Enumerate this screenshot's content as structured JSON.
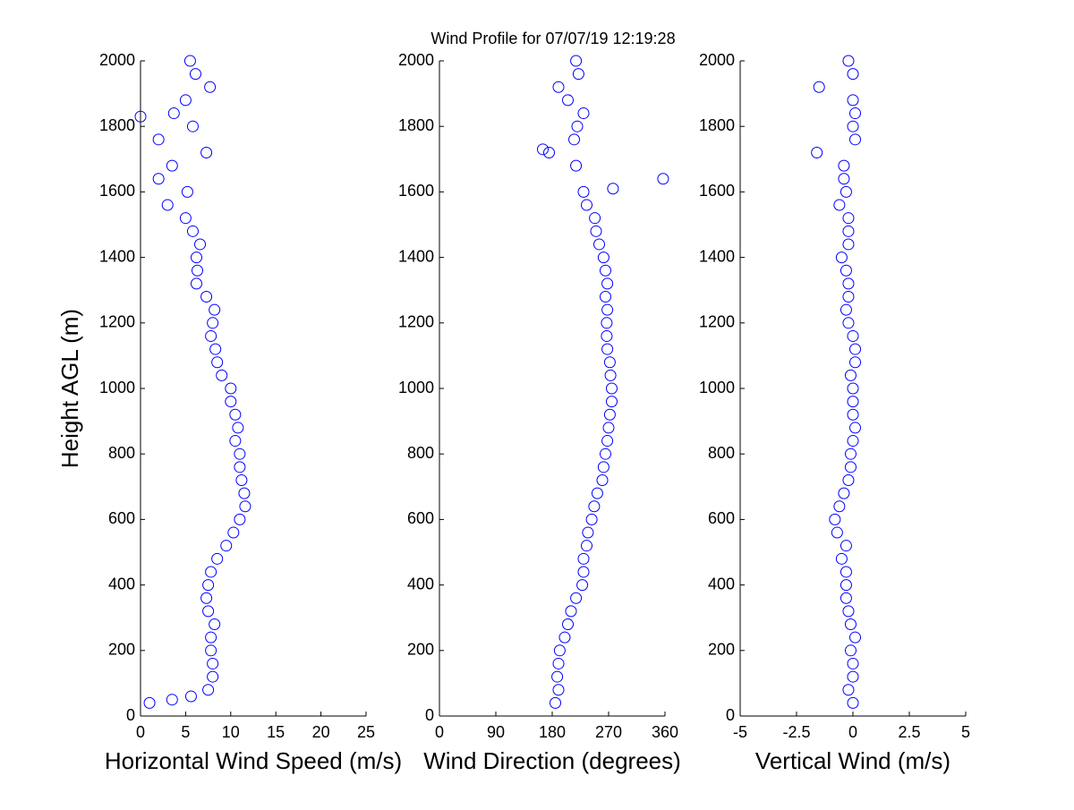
{
  "title": "Wind Profile for  07/07/19 12:19:28",
  "chart_data": [
    {
      "type": "scatter",
      "xlabel": "Horizontal Wind Speed (m/s)",
      "ylabel": "Height AGL (m)",
      "color": "#0000ff",
      "xlim": [
        0,
        25
      ],
      "xticks": [
        0,
        5,
        10,
        15,
        20,
        25
      ],
      "ylim": [
        0,
        2000
      ],
      "yticks": [
        0,
        200,
        400,
        600,
        800,
        1000,
        1200,
        1400,
        1600,
        1800,
        2000
      ],
      "x": [
        1.0,
        3.5,
        5.6,
        7.5,
        8,
        8,
        7.8,
        7.8,
        8.2,
        7.5,
        7.3,
        7.5,
        7.8,
        8.5,
        9.5,
        10.3,
        11,
        11.6,
        11.5,
        11.2,
        11,
        11,
        10.5,
        10.8,
        10.5,
        10,
        10,
        9,
        8.5,
        8.3,
        7.8,
        8,
        8.2,
        7.3,
        6.2,
        6.3,
        6.2,
        6.6,
        5.8,
        5,
        3,
        5.2,
        2,
        3.5,
        7.3,
        2,
        5.8,
        0,
        3.7,
        5,
        7.7,
        6.1,
        5.5
      ],
      "y": [
        40,
        50,
        60,
        80,
        120,
        160,
        200,
        240,
        280,
        320,
        360,
        400,
        440,
        480,
        520,
        560,
        600,
        640,
        680,
        720,
        760,
        800,
        840,
        880,
        920,
        960,
        1000,
        1040,
        1080,
        1120,
        1160,
        1200,
        1240,
        1280,
        1320,
        1360,
        1400,
        1440,
        1480,
        1520,
        1560,
        1600,
        1640,
        1680,
        1720,
        1760,
        1800,
        1830,
        1840,
        1880,
        1920,
        1960,
        2000
      ]
    },
    {
      "type": "scatter",
      "xlabel": "Wind Direction (degrees)",
      "color": "#0000ff",
      "xlim": [
        0,
        360
      ],
      "xticks": [
        0,
        90,
        180,
        270,
        360
      ],
      "ylim": [
        0,
        2000
      ],
      "yticks": [
        0,
        200,
        400,
        600,
        800,
        1000,
        1200,
        1400,
        1600,
        1800,
        2000
      ],
      "x": [
        185,
        190,
        188,
        190,
        192,
        200,
        205,
        210,
        218,
        228,
        230,
        230,
        235,
        237,
        243,
        247,
        252,
        260,
        262,
        265,
        268,
        270,
        272,
        275,
        275,
        273,
        272,
        268,
        267,
        267,
        268,
        265,
        268,
        265,
        262,
        255,
        250,
        248,
        235,
        230,
        277,
        357,
        218,
        175,
        165,
        215,
        220,
        230,
        205,
        190,
        222,
        218
      ],
      "y": [
        40,
        80,
        120,
        160,
        200,
        240,
        280,
        320,
        360,
        400,
        440,
        480,
        520,
        560,
        600,
        640,
        680,
        720,
        760,
        800,
        840,
        880,
        920,
        960,
        1000,
        1040,
        1080,
        1120,
        1160,
        1200,
        1240,
        1280,
        1320,
        1360,
        1400,
        1440,
        1480,
        1520,
        1560,
        1600,
        1610,
        1640,
        1680,
        1720,
        1730,
        1760,
        1800,
        1840,
        1880,
        1920,
        1960,
        2000
      ]
    },
    {
      "type": "scatter",
      "xlabel": "Vertical Wind (m/s)",
      "color": "#0000ff",
      "xlim": [
        -5,
        5
      ],
      "xticks": [
        -5,
        -2.5,
        0,
        2.5,
        5
      ],
      "ylim": [
        0,
        2000
      ],
      "yticks": [
        0,
        200,
        400,
        600,
        800,
        1000,
        1200,
        1400,
        1600,
        1800,
        2000
      ],
      "x": [
        0,
        -0.2,
        0,
        0,
        -0.1,
        0.1,
        -0.1,
        -0.2,
        -0.3,
        -0.3,
        -0.3,
        -0.5,
        -0.3,
        -0.7,
        -0.8,
        -0.6,
        -0.4,
        -0.2,
        -0.1,
        -0.1,
        0,
        0.1,
        0,
        0,
        0,
        -0.1,
        0.1,
        0.1,
        0,
        -0.2,
        -0.3,
        -0.2,
        -0.2,
        -0.3,
        -0.5,
        -0.2,
        -0.2,
        -0.2,
        -0.6,
        -0.3,
        -0.4,
        -0.4,
        -1.6,
        0.1,
        0,
        0.1,
        0,
        -1.5,
        0,
        -0.2
      ],
      "y": [
        40,
        80,
        120,
        160,
        200,
        240,
        280,
        320,
        360,
        400,
        440,
        480,
        520,
        560,
        600,
        640,
        680,
        720,
        760,
        800,
        840,
        880,
        920,
        960,
        1000,
        1040,
        1080,
        1120,
        1160,
        1200,
        1240,
        1280,
        1320,
        1360,
        1400,
        1440,
        1480,
        1520,
        1560,
        1600,
        1640,
        1680,
        1720,
        1760,
        1800,
        1840,
        1880,
        1920,
        1960,
        2000
      ]
    }
  ]
}
